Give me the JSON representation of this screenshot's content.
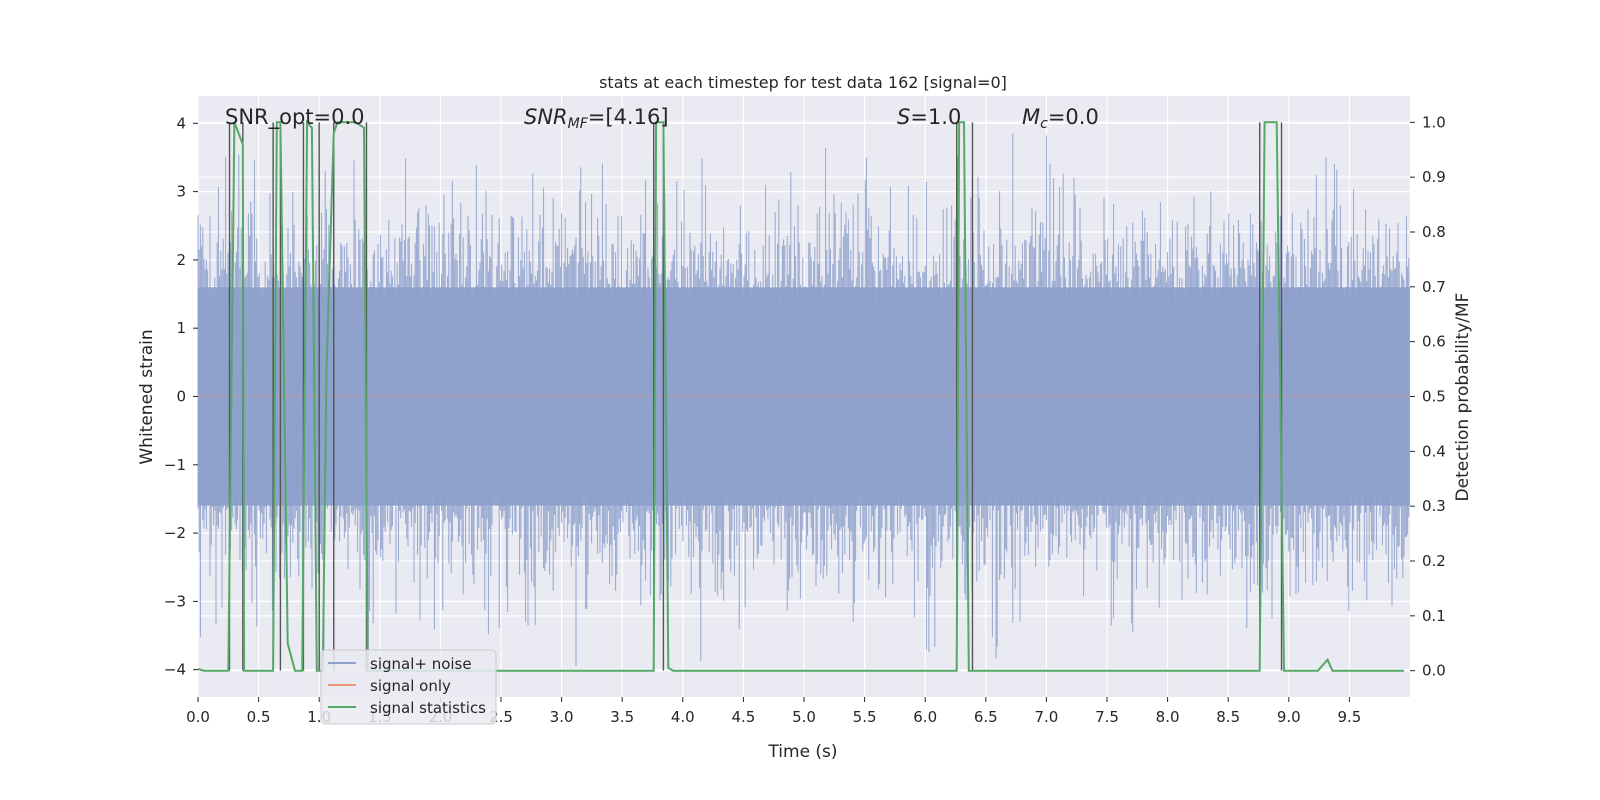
{
  "chart_data": {
    "type": "line",
    "title": "stats at each timestep for test data 162 [signal=0]",
    "xlabel": "Time (s)",
    "ylabel": "Whitened strain",
    "ylabel_right": "Detection probability/MF",
    "xlim": [
      0.0,
      10.0
    ],
    "ylim": [
      -4.4,
      4.4
    ],
    "ylim_right": [
      -0.048,
      1.048
    ],
    "x_ticks": [
      0.0,
      0.5,
      1.0,
      1.5,
      2.0,
      2.5,
      3.0,
      3.5,
      4.0,
      4.5,
      5.0,
      5.5,
      6.0,
      6.5,
      7.0,
      7.5,
      8.0,
      8.5,
      9.0,
      9.5
    ],
    "x_tick_labels": [
      "0.0",
      "0.5",
      "1.0",
      "1.5",
      "2.0",
      "2.5",
      "3.0",
      "3.5",
      "4.0",
      "4.5",
      "5.0",
      "5.5",
      "6.0",
      "6.5",
      "7.0",
      "7.5",
      "8.0",
      "8.5",
      "9.0",
      "9.5"
    ],
    "y_ticks": [
      -4,
      -3,
      -2,
      -1,
      0,
      1,
      2,
      3,
      4
    ],
    "y_tick_labels": [
      "−4",
      "−3",
      "−2",
      "−1",
      "0",
      "1",
      "2",
      "3",
      "4"
    ],
    "y_right_ticks": [
      0.0,
      0.1,
      0.2,
      0.3,
      0.4,
      0.5,
      0.6,
      0.7,
      0.8,
      0.9,
      1.0
    ],
    "y_right_tick_labels": [
      "0.0",
      "0.1",
      "0.2",
      "0.3",
      "0.4",
      "0.5",
      "0.6",
      "0.7",
      "0.8",
      "0.9",
      "1.0"
    ],
    "grid": true,
    "legend_position": "lower-left",
    "annotations": {
      "snr_opt": "SNR_opt=0.0",
      "snr_mf_prefix": "SNR",
      "snr_mf_sub": "MF",
      "snr_mf_value": "=[4.16]",
      "s_prefix": "S",
      "s_value": "=1.0",
      "mc_prefix": "M",
      "mc_sub": "c",
      "mc_value": "=0.0"
    },
    "series": [
      {
        "name": "signal+ noise",
        "color": "#8da0cb",
        "axis": "left",
        "description_values": "dense whitened noise trace, bulk within approx. ±1.6, peaks reaching approx. -3.9 to 3.8"
      },
      {
        "name": "signal only",
        "color": "#e9967a",
        "axis": "left",
        "values_constant": 0.0
      },
      {
        "name": "signal statistics",
        "color": "#55a868",
        "axis": "right",
        "x": [
          0.0,
          0.05,
          0.25,
          0.3,
          0.37,
          0.38,
          0.44,
          0.6,
          0.62,
          0.65,
          0.68,
          0.74,
          0.8,
          0.86,
          0.9,
          0.94,
          0.98,
          1.0,
          1.03,
          1.06,
          1.12,
          1.15,
          1.2,
          1.3,
          1.37,
          1.4,
          1.5,
          3.7,
          3.76,
          3.78,
          3.84,
          3.88,
          3.92,
          6.22,
          6.26,
          6.28,
          6.32,
          6.36,
          6.4,
          6.44,
          8.72,
          8.76,
          8.8,
          8.9,
          8.96,
          9.0,
          9.24,
          9.32,
          9.36,
          9.95
        ],
        "y": [
          0.003,
          0.0,
          0.0,
          1.0,
          0.96,
          0.0,
          0.0,
          0.0,
          0.0,
          1.0,
          1.0,
          0.05,
          0.0,
          0.0,
          1.0,
          0.99,
          0.0,
          0.0,
          0.0,
          0.55,
          0.98,
          1.0,
          1.0,
          1.0,
          0.99,
          0.0,
          0.0,
          0.0,
          0.0,
          1.0,
          1.0,
          0.005,
          0.0,
          0.0,
          0.0,
          1.0,
          1.0,
          0.0,
          0.0,
          0.0,
          0.0,
          0.0,
          1.0,
          1.0,
          0.0,
          0.0,
          0.0,
          0.02,
          0.0,
          0.0
        ]
      }
    ],
    "threshold_lines": {
      "color": "#555555",
      "x": [
        0.26,
        0.37,
        0.62,
        0.68,
        0.87,
        1.0,
        1.12,
        1.39,
        3.76,
        3.84,
        6.26,
        6.39,
        8.76,
        8.94
      ]
    }
  },
  "legend": {
    "items": [
      {
        "label": "signal+ noise",
        "color": "#8da0cb"
      },
      {
        "label": "signal only",
        "color": "#e9967a"
      },
      {
        "label": "signal statistics",
        "color": "#55a868"
      }
    ]
  },
  "style": {
    "axes_background": "#eaeaf2",
    "grid_color": "#ffffff"
  }
}
